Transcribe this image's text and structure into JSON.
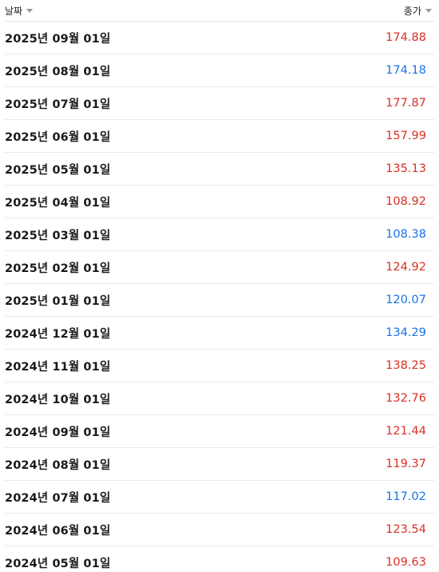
{
  "colors": {
    "up": "#d93026",
    "down": "#1a73e8"
  },
  "header": {
    "date_label": "날짜",
    "close_label": "종가",
    "date_sort_icon": "caret-down-icon",
    "close_sort_icon": "caret-down-icon"
  },
  "rows": [
    {
      "date": "2025년 09월 01일",
      "close": "174.88",
      "trend": "up"
    },
    {
      "date": "2025년 08월 01일",
      "close": "174.18",
      "trend": "down"
    },
    {
      "date": "2025년 07월 01일",
      "close": "177.87",
      "trend": "up"
    },
    {
      "date": "2025년 06월 01일",
      "close": "157.99",
      "trend": "up"
    },
    {
      "date": "2025년 05월 01일",
      "close": "135.13",
      "trend": "up"
    },
    {
      "date": "2025년 04월 01일",
      "close": "108.92",
      "trend": "up"
    },
    {
      "date": "2025년 03월 01일",
      "close": "108.38",
      "trend": "down"
    },
    {
      "date": "2025년 02월 01일",
      "close": "124.92",
      "trend": "up"
    },
    {
      "date": "2025년 01월 01일",
      "close": "120.07",
      "trend": "down"
    },
    {
      "date": "2024년 12월 01일",
      "close": "134.29",
      "trend": "down"
    },
    {
      "date": "2024년 11월 01일",
      "close": "138.25",
      "trend": "up"
    },
    {
      "date": "2024년 10월 01일",
      "close": "132.76",
      "trend": "up"
    },
    {
      "date": "2024년 09월 01일",
      "close": "121.44",
      "trend": "up"
    },
    {
      "date": "2024년 08월 01일",
      "close": "119.37",
      "trend": "up"
    },
    {
      "date": "2024년 07월 01일",
      "close": "117.02",
      "trend": "down"
    },
    {
      "date": "2024년 06월 01일",
      "close": "123.54",
      "trend": "up"
    },
    {
      "date": "2024년 05월 01일",
      "close": "109.63",
      "trend": "up"
    }
  ]
}
